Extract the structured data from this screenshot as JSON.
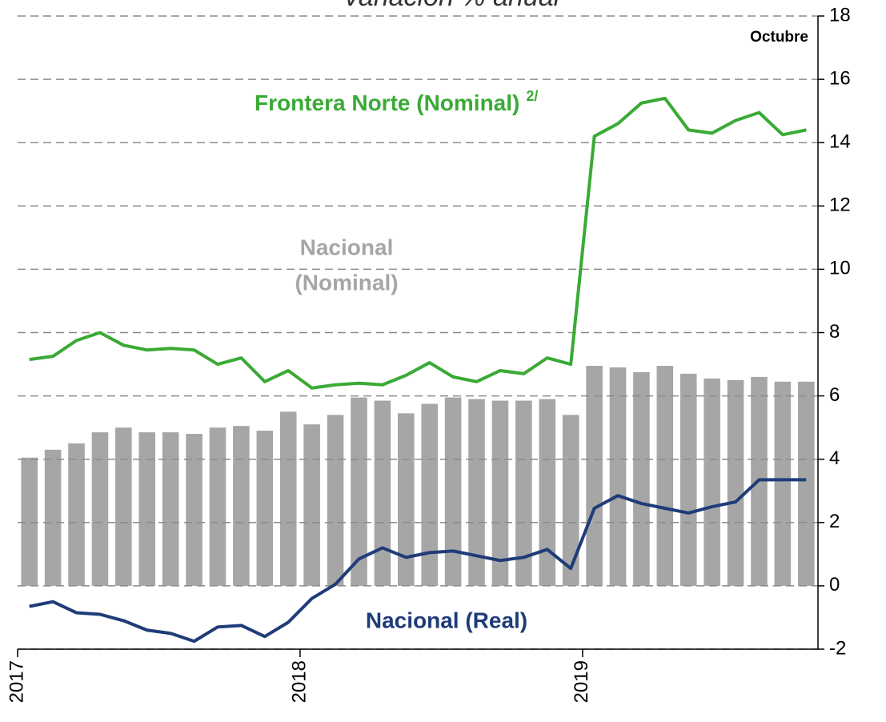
{
  "chart_data": {
    "type": "bar_line",
    "title": "variación % anual",
    "annotations": {
      "month": "Octubre",
      "frontera": "Frontera Norte (Nominal)",
      "frontera_note": "2/",
      "nacional_nominal": [
        "Nacional",
        "(Nominal)"
      ],
      "nacional_real": "Nacional (Real)"
    },
    "categories": [
      "2017",
      null,
      null,
      null,
      null,
      null,
      null,
      null,
      null,
      null,
      null,
      null,
      "2018",
      null,
      null,
      null,
      null,
      null,
      null,
      null,
      null,
      null,
      null,
      null,
      "2019",
      null,
      null,
      null,
      null,
      null,
      null,
      null,
      null,
      null
    ],
    "series": [
      {
        "name": "Nacional (Nominal)",
        "kind": "bar",
        "color": "#a6a6a6",
        "values": [
          4.05,
          4.3,
          4.5,
          4.85,
          5.0,
          4.85,
          4.85,
          4.8,
          5.0,
          5.05,
          4.9,
          5.5,
          5.1,
          5.4,
          5.95,
          5.85,
          5.45,
          5.75,
          5.95,
          5.9,
          5.85,
          5.85,
          5.9,
          5.4,
          6.95,
          6.9,
          6.75,
          6.95,
          6.7,
          6.55,
          6.5,
          6.6,
          6.45,
          6.45
        ]
      },
      {
        "name": "Frontera Norte (Nominal)",
        "kind": "line",
        "color": "#3aaa35",
        "values": [
          7.15,
          7.25,
          7.75,
          8.0,
          7.6,
          7.45,
          7.5,
          7.45,
          7.0,
          7.2,
          6.45,
          6.8,
          6.25,
          6.35,
          6.4,
          6.35,
          6.65,
          7.05,
          6.6,
          6.45,
          6.8,
          6.7,
          7.2,
          7.0,
          14.2,
          14.6,
          15.25,
          15.4,
          14.4,
          14.3,
          14.7,
          14.95,
          14.25,
          14.4
        ]
      },
      {
        "name": "Nacional (Real)",
        "kind": "line",
        "color": "#1f3c78",
        "values": [
          -0.65,
          -0.5,
          -0.85,
          -0.9,
          -1.1,
          -1.4,
          -1.5,
          -1.75,
          -1.3,
          -1.25,
          -1.6,
          -1.15,
          -0.4,
          0.05,
          0.85,
          1.2,
          0.9,
          1.05,
          1.1,
          0.95,
          0.8,
          0.9,
          1.15,
          0.55,
          2.45,
          2.85,
          2.6,
          2.45,
          2.3,
          2.5,
          2.65,
          3.35,
          3.35,
          3.35
        ]
      }
    ],
    "ylim": [
      -2,
      18
    ],
    "yticks": [
      -2,
      0,
      2,
      4,
      6,
      8,
      10,
      12,
      14,
      16,
      18
    ],
    "grid": true
  }
}
